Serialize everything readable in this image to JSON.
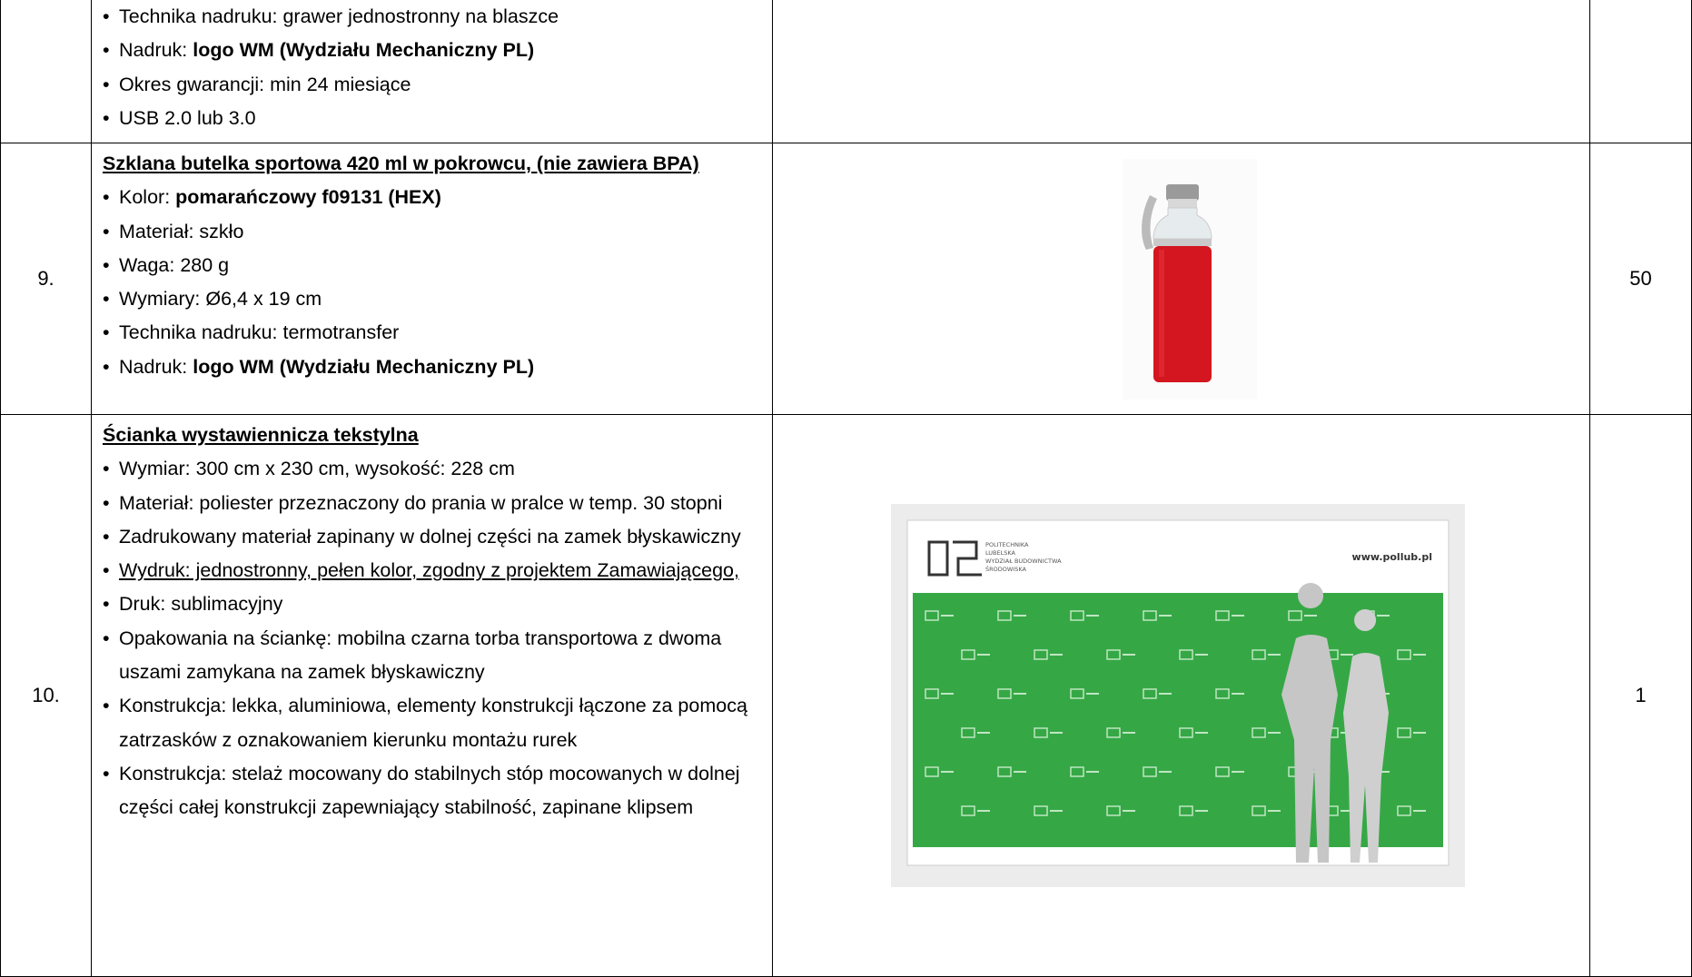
{
  "rows": [
    {
      "items": [
        [
          {
            "text": "Technika nadruku: grawer jednostronny na blaszce"
          }
        ],
        [
          {
            "text": "Nadruk: "
          },
          {
            "text": "logo WM (Wydziału Mechaniczny PL)",
            "style": "bold"
          }
        ],
        [
          {
            "text": "Okres gwarancji: min 24 miesiące"
          }
        ],
        [
          {
            "text": "USB 2.0 lub 3.0"
          }
        ]
      ]
    },
    {
      "no": "9.",
      "title": "Szklana butelka sportowa 420 ml w pokrowcu, (nie zawiera BPA)",
      "qty": "50",
      "items": [
        [
          {
            "text": "Kolor: "
          },
          {
            "text": "pomarańczowy f09131 (HEX)",
            "style": "bold"
          }
        ],
        [
          {
            "text": "Materiał: szkło"
          }
        ],
        [
          {
            "text": "Waga: 280 g"
          }
        ],
        [
          {
            "text": "Wymiary: Ø6,4 x 19 cm"
          }
        ],
        [
          {
            "text": "Technika nadruku: termotransfer"
          }
        ],
        [
          {
            "text": "Nadruk: "
          },
          {
            "text": "logo WM (Wydziału Mechaniczny PL)",
            "style": "bold"
          }
        ]
      ]
    },
    {
      "no": "10.",
      "title": "Ścianka wystawiennicza tekstylna",
      "qty": "1",
      "items": [
        [
          {
            "text": "Wymiar: 300 cm x 230 cm, wysokość: 228 cm"
          }
        ],
        [
          {
            "text": "Materiał: poliester przeznaczony do prania w pralce w temp. 30 stopni"
          }
        ],
        [
          {
            "text": "Zadrukowany materiał zapinany w dolnej części na zamek błyskawiczny"
          }
        ],
        [
          {
            "text": "Wydruk: jednostronny, pełen kolor, zgodny z projektem Zamawiającego,",
            "style": "underline"
          }
        ],
        [
          {
            "text": "Druk: sublimacyjny"
          }
        ],
        [
          {
            "text": "Opakowania na ściankę: mobilna czarna torba transportowa z dwoma uszami zamykana na zamek błyskawiczny"
          }
        ],
        [
          {
            "text": "Konstrukcja: lekka, aluminiowa, elementy konstrukcji łączone za pomocą zatrzasków z oznakowaniem kierunku montażu rurek"
          }
        ],
        [
          {
            "text": "Konstrukcja: stelaż mocowany do stabilnych stóp mocowanych w dolnej części całej konstrukcji zapewniający stabilność, zapinane klipsem"
          }
        ]
      ],
      "image_texts": [
        "POLITECHNIKA",
        "LUBELSKA",
        "WYDZIAŁ BUDOWNICTWA",
        "ŚRODOWISKA",
        "www.pollub.pl"
      ]
    }
  ]
}
